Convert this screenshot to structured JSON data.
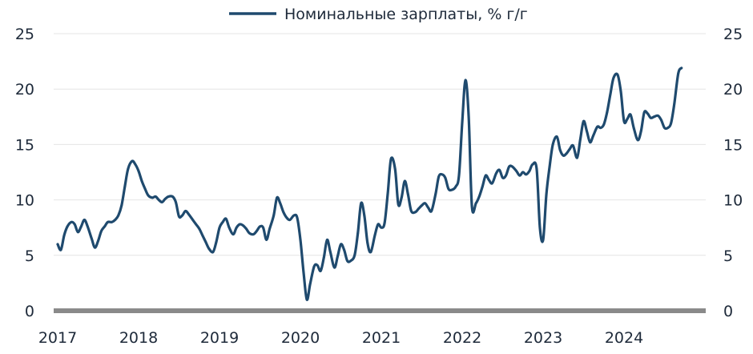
{
  "chart_data": {
    "type": "line",
    "title": "",
    "xlabel": "",
    "ylabel": "",
    "ylim": [
      0,
      25
    ],
    "yticks": [
      "0",
      "5",
      "10",
      "15",
      "20",
      "25"
    ],
    "xlim": [
      2017,
      2024.98
    ],
    "xticks": [
      "2017",
      "2018",
      "2019",
      "2020",
      "2021",
      "2022",
      "2023",
      "2024"
    ],
    "grid": true,
    "legend": "top-center",
    "series": [
      {
        "name": "Номинальные зарплаты, % г/г",
        "color": "#1f4a6e",
        "points": [
          [
            2017.0,
            6.0
          ],
          [
            2017.04,
            5.5
          ],
          [
            2017.08,
            6.8
          ],
          [
            2017.12,
            7.6
          ],
          [
            2017.17,
            8.0
          ],
          [
            2017.21,
            7.8
          ],
          [
            2017.25,
            7.1
          ],
          [
            2017.29,
            7.6
          ],
          [
            2017.33,
            8.2
          ],
          [
            2017.37,
            7.6
          ],
          [
            2017.42,
            6.5
          ],
          [
            2017.46,
            5.7
          ],
          [
            2017.5,
            6.3
          ],
          [
            2017.54,
            7.2
          ],
          [
            2017.58,
            7.6
          ],
          [
            2017.62,
            8.0
          ],
          [
            2017.67,
            8.0
          ],
          [
            2017.71,
            8.2
          ],
          [
            2017.75,
            8.6
          ],
          [
            2017.79,
            9.5
          ],
          [
            2017.83,
            11.2
          ],
          [
            2017.87,
            12.8
          ],
          [
            2017.92,
            13.5
          ],
          [
            2017.96,
            13.2
          ],
          [
            2018.0,
            12.6
          ],
          [
            2018.04,
            11.7
          ],
          [
            2018.08,
            11.0
          ],
          [
            2018.12,
            10.4
          ],
          [
            2018.17,
            10.2
          ],
          [
            2018.21,
            10.3
          ],
          [
            2018.25,
            10.0
          ],
          [
            2018.29,
            9.8
          ],
          [
            2018.33,
            10.1
          ],
          [
            2018.37,
            10.3
          ],
          [
            2018.42,
            10.3
          ],
          [
            2018.46,
            9.8
          ],
          [
            2018.5,
            8.5
          ],
          [
            2018.54,
            8.6
          ],
          [
            2018.58,
            9.0
          ],
          [
            2018.62,
            8.7
          ],
          [
            2018.67,
            8.2
          ],
          [
            2018.71,
            7.8
          ],
          [
            2018.75,
            7.4
          ],
          [
            2018.79,
            6.8
          ],
          [
            2018.83,
            6.2
          ],
          [
            2018.87,
            5.6
          ],
          [
            2018.92,
            5.3
          ],
          [
            2018.96,
            6.2
          ],
          [
            2019.0,
            7.5
          ],
          [
            2019.04,
            8.0
          ],
          [
            2019.08,
            8.3
          ],
          [
            2019.12,
            7.5
          ],
          [
            2019.17,
            6.9
          ],
          [
            2019.21,
            7.5
          ],
          [
            2019.25,
            7.8
          ],
          [
            2019.29,
            7.7
          ],
          [
            2019.33,
            7.4
          ],
          [
            2019.37,
            7.0
          ],
          [
            2019.42,
            6.9
          ],
          [
            2019.46,
            7.2
          ],
          [
            2019.5,
            7.6
          ],
          [
            2019.54,
            7.5
          ],
          [
            2019.58,
            6.4
          ],
          [
            2019.62,
            7.4
          ],
          [
            2019.67,
            8.6
          ],
          [
            2019.71,
            10.2
          ],
          [
            2019.75,
            9.7
          ],
          [
            2019.79,
            8.9
          ],
          [
            2019.83,
            8.4
          ],
          [
            2019.87,
            8.2
          ],
          [
            2019.92,
            8.6
          ],
          [
            2019.96,
            8.4
          ],
          [
            2020.0,
            6.4
          ],
          [
            2020.04,
            3.4
          ],
          [
            2020.08,
            1.0
          ],
          [
            2020.12,
            2.4
          ],
          [
            2020.17,
            4.0
          ],
          [
            2020.21,
            4.1
          ],
          [
            2020.25,
            3.6
          ],
          [
            2020.29,
            4.8
          ],
          [
            2020.33,
            6.4
          ],
          [
            2020.37,
            5.3
          ],
          [
            2020.42,
            3.9
          ],
          [
            2020.46,
            4.9
          ],
          [
            2020.5,
            6.0
          ],
          [
            2020.54,
            5.5
          ],
          [
            2020.58,
            4.5
          ],
          [
            2020.62,
            4.5
          ],
          [
            2020.67,
            5.0
          ],
          [
            2020.71,
            7.0
          ],
          [
            2020.75,
            9.7
          ],
          [
            2020.79,
            8.6
          ],
          [
            2020.83,
            6.1
          ],
          [
            2020.87,
            5.3
          ],
          [
            2020.92,
            6.8
          ],
          [
            2020.96,
            7.8
          ],
          [
            2021.0,
            7.5
          ],
          [
            2021.04,
            7.9
          ],
          [
            2021.08,
            10.6
          ],
          [
            2021.12,
            13.7
          ],
          [
            2021.17,
            12.8
          ],
          [
            2021.21,
            9.6
          ],
          [
            2021.25,
            10.2
          ],
          [
            2021.29,
            11.7
          ],
          [
            2021.33,
            10.5
          ],
          [
            2021.37,
            9.0
          ],
          [
            2021.42,
            8.9
          ],
          [
            2021.46,
            9.2
          ],
          [
            2021.5,
            9.5
          ],
          [
            2021.54,
            9.7
          ],
          [
            2021.58,
            9.3
          ],
          [
            2021.62,
            9.0
          ],
          [
            2021.67,
            10.5
          ],
          [
            2021.71,
            12.1
          ],
          [
            2021.75,
            12.3
          ],
          [
            2021.79,
            12.0
          ],
          [
            2021.83,
            11.0
          ],
          [
            2021.87,
            10.9
          ],
          [
            2021.92,
            11.2
          ],
          [
            2021.96,
            12.2
          ],
          [
            2022.0,
            17.0
          ],
          [
            2022.04,
            20.8
          ],
          [
            2022.08,
            17.5
          ],
          [
            2022.12,
            9.4
          ],
          [
            2022.17,
            9.7
          ],
          [
            2022.21,
            10.3
          ],
          [
            2022.25,
            11.2
          ],
          [
            2022.29,
            12.2
          ],
          [
            2022.33,
            11.8
          ],
          [
            2022.37,
            11.5
          ],
          [
            2022.42,
            12.4
          ],
          [
            2022.46,
            12.7
          ],
          [
            2022.5,
            12.0
          ],
          [
            2022.54,
            12.2
          ],
          [
            2022.58,
            13.0
          ],
          [
            2022.62,
            13.0
          ],
          [
            2022.67,
            12.6
          ],
          [
            2022.71,
            12.2
          ],
          [
            2022.75,
            12.5
          ],
          [
            2022.79,
            12.3
          ],
          [
            2022.83,
            12.6
          ],
          [
            2022.87,
            13.2
          ],
          [
            2022.92,
            12.8
          ],
          [
            2022.96,
            7.5
          ],
          [
            2023.0,
            6.4
          ],
          [
            2023.04,
            10.5
          ],
          [
            2023.08,
            13.0
          ],
          [
            2023.12,
            15.0
          ],
          [
            2023.17,
            15.7
          ],
          [
            2023.21,
            14.5
          ],
          [
            2023.25,
            14.0
          ],
          [
            2023.29,
            14.2
          ],
          [
            2023.33,
            14.6
          ],
          [
            2023.37,
            14.9
          ],
          [
            2023.42,
            13.8
          ],
          [
            2023.46,
            15.5
          ],
          [
            2023.5,
            17.1
          ],
          [
            2023.54,
            16.2
          ],
          [
            2023.58,
            15.2
          ],
          [
            2023.62,
            15.8
          ],
          [
            2023.67,
            16.6
          ],
          [
            2023.71,
            16.5
          ],
          [
            2023.75,
            16.8
          ],
          [
            2023.79,
            17.9
          ],
          [
            2023.83,
            19.5
          ],
          [
            2023.87,
            21.0
          ],
          [
            2023.92,
            21.3
          ],
          [
            2023.96,
            19.8
          ],
          [
            2024.0,
            17.1
          ],
          [
            2024.04,
            17.3
          ],
          [
            2024.08,
            17.7
          ],
          [
            2024.12,
            16.5
          ],
          [
            2024.17,
            15.4
          ],
          [
            2024.21,
            16.2
          ],
          [
            2024.25,
            17.9
          ],
          [
            2024.29,
            17.8
          ],
          [
            2024.33,
            17.4
          ],
          [
            2024.37,
            17.5
          ],
          [
            2024.42,
            17.6
          ],
          [
            2024.46,
            17.2
          ],
          [
            2024.5,
            16.5
          ],
          [
            2024.54,
            16.5
          ],
          [
            2024.58,
            16.9
          ],
          [
            2024.62,
            18.6
          ],
          [
            2024.67,
            21.4
          ],
          [
            2024.71,
            21.9
          ]
        ]
      }
    ]
  }
}
